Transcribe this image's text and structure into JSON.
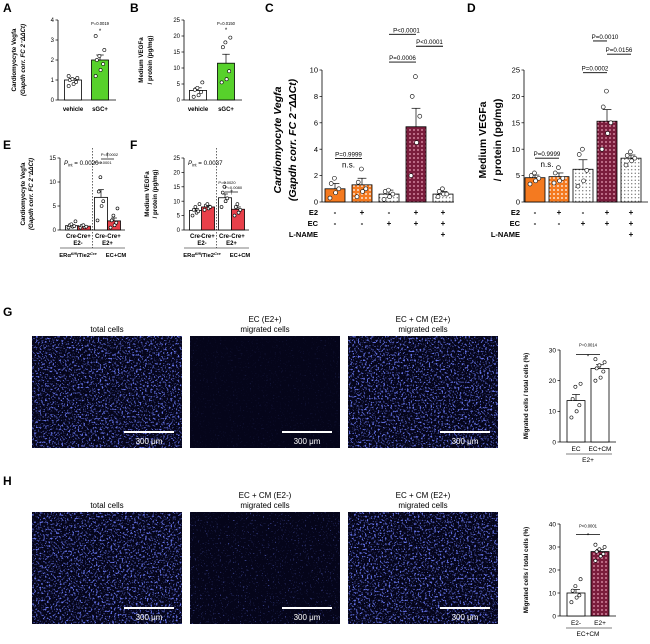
{
  "panels": {
    "A": {
      "letter": "A",
      "ylabel1": "Cardiomyocyte Vegfa",
      "ylabel2": "(Gapdh corr. FC 2⁻ΔΔCt)"
    },
    "B": {
      "letter": "B",
      "ylabel1": "Medium VEGFa",
      "ylabel2": "/ protein (pg/mg)"
    },
    "C": {
      "letter": "C",
      "ylabel1": "Cardiomyocyte Vegfa",
      "ylabel2": "(Gapdh corr. FC 2⁻ΔΔCt)"
    },
    "D": {
      "letter": "D",
      "ylabel1": "Medium VEGFa",
      "ylabel2": "/ protein (pg/mg)"
    },
    "E": {
      "letter": "E",
      "ylabel1": "Cardiomyocyte Vegfa",
      "ylabel2": "(Gapdh corr. FC 2⁻ΔΔCt)",
      "pint": "P",
      "pint_sub": "int",
      "pint_val": " = 0.0020",
      "genotype": "ERα",
      "genotype_sup": "fl/fl",
      "genotype2": "/Tie2",
      "genotype2_sup": "Cre",
      "ec_cm": "EC+CM"
    },
    "F": {
      "letter": "F",
      "ylabel1": "Medium VEGFa",
      "ylabel2": "/ protein (pg/mg)",
      "pint": "P",
      "pint_sub": "int",
      "pint_val": " = 0.0037",
      "genotype": "ERα",
      "genotype_sup": "fl/fl",
      "genotype2": "/Tie2",
      "genotype2_sup": "Cre",
      "ec_cm": "EC+CM"
    },
    "G": {
      "letter": "G",
      "img_labels": [
        [
          "total cells"
        ],
        [
          "EC (E2+)",
          "migrated cells"
        ],
        [
          "EC + CM (E2+)",
          "migrated cells"
        ]
      ],
      "scale": "300 μm",
      "ylabel": "Migrated cells / total cells (%)"
    },
    "H": {
      "letter": "H",
      "img_labels": [
        [
          "total cells"
        ],
        [
          "EC + CM (E2-)",
          "migrated cells"
        ],
        [
          "EC + CM (E2+)",
          "migrated cells"
        ]
      ],
      "scale": "300 μm",
      "ylabel": "Migrated cells / total cells (%)"
    }
  },
  "row_labels_CD": {
    "e2": "E2",
    "ec": "EC",
    "lname": "L-NAME",
    "minus": "-",
    "plus": "+"
  },
  "chart_data": [
    {
      "panel": "A",
      "type": "bar",
      "categories": [
        "vehicle",
        "sGC+"
      ],
      "values": [
        1.0,
        2.0
      ],
      "errors": [
        0.08,
        0.25
      ],
      "points": [
        [
          0.7,
          0.8,
          0.9,
          1.0,
          1.05,
          1.1,
          1.2
        ],
        [
          1.2,
          1.5,
          1.8,
          2.0,
          2.2,
          2.5,
          3.2
        ]
      ],
      "colors": [
        "#ffffff",
        "#57d12b"
      ],
      "ylim": [
        0,
        4
      ],
      "yticks": [
        0,
        1,
        2,
        3,
        4
      ],
      "p_labels": [
        "P=0.0019"
      ],
      "stars": [
        "*"
      ]
    },
    {
      "panel": "B",
      "type": "bar",
      "categories": [
        "vehicle",
        "sGC+"
      ],
      "values": [
        3.0,
        11.5
      ],
      "errors": [
        0.8,
        2.8
      ],
      "points": [
        [
          1.0,
          1.5,
          2.5,
          3.2,
          3.8,
          5.5
        ],
        [
          5.5,
          6.5,
          9.0,
          16.5,
          18.0,
          19.5
        ]
      ],
      "colors": [
        "#ffffff",
        "#57d12b"
      ],
      "ylim": [
        0,
        25
      ],
      "yticks": [
        0,
        5,
        10,
        15,
        20,
        25
      ],
      "p_labels": [
        "P=0.0150"
      ],
      "stars": [
        "*"
      ]
    },
    {
      "panel": "C",
      "type": "bar",
      "values": [
        1.0,
        1.3,
        0.6,
        5.7,
        0.6
      ],
      "errors": [
        0.4,
        0.5,
        0.3,
        1.4,
        0.2
      ],
      "points": [
        [
          0.3,
          0.7,
          1.0,
          1.4,
          1.8
        ],
        [
          0.4,
          0.8,
          1.0,
          1.5,
          2.5
        ],
        [
          0.2,
          0.4,
          0.6,
          0.8,
          0.9
        ],
        [
          2.0,
          4.5,
          6.5,
          8.0,
          9.5
        ],
        [
          0.4,
          0.6,
          0.6,
          0.8,
          1.0
        ]
      ],
      "colors": [
        "#f47a20",
        "#f47a20",
        "#ffffff",
        "#7a1d3c",
        "#ffffff"
      ],
      "patterns": [
        "solid",
        "dots",
        "dots-white",
        "dots",
        "dots-white"
      ],
      "ylim": [
        0,
        10
      ],
      "yticks": [
        0,
        2,
        4,
        6,
        8,
        10
      ],
      "e2": [
        "-",
        "+",
        "-",
        "+",
        "+"
      ],
      "ec": [
        "-",
        "-",
        "+",
        "+",
        "+"
      ],
      "lname": [
        "",
        "",
        "",
        "",
        "+"
      ],
      "p_labels": [
        "P=0.9999",
        "n.s.",
        "P=0.0006",
        "P<0.0001",
        "P<0.0001"
      ]
    },
    {
      "panel": "D",
      "type": "bar",
      "values": [
        4.6,
        4.8,
        6.2,
        15.3,
        8.3
      ],
      "errors": [
        0.5,
        0.7,
        1.8,
        2.2,
        0.6
      ],
      "points": [
        [
          3.4,
          4.0,
          4.5,
          5.0,
          5.5
        ],
        [
          3.6,
          4.0,
          4.5,
          5.5,
          6.5
        ],
        [
          3.0,
          4.0,
          6.0,
          9.0,
          10.0
        ],
        [
          10.0,
          13.0,
          15.0,
          18.0,
          21.0
        ],
        [
          7.0,
          7.8,
          8.3,
          8.8,
          9.5
        ]
      ],
      "colors": [
        "#f47a20",
        "#f47a20",
        "#ffffff",
        "#7a1d3c",
        "#ffffff"
      ],
      "patterns": [
        "solid",
        "dots",
        "dots-white",
        "dots",
        "dots-white"
      ],
      "ylim": [
        0,
        25
      ],
      "yticks": [
        0,
        5,
        10,
        15,
        20,
        25
      ],
      "e2": [
        "-",
        "+",
        "-",
        "+",
        "+"
      ],
      "ec": [
        "-",
        "-",
        "+",
        "+",
        "+"
      ],
      "lname": [
        "",
        "",
        "",
        "",
        "+"
      ],
      "p_labels": [
        "P=0.9999",
        "n.s.",
        "P=0.0002",
        "P=0.0010",
        "P=0.0156"
      ]
    },
    {
      "panel": "E",
      "type": "bar",
      "categories": [
        "Cre-",
        "Cre+",
        "Cre-",
        "Cre+"
      ],
      "groups": [
        "E2-",
        "E2+"
      ],
      "values": [
        0.9,
        0.8,
        6.8,
        1.9
      ],
      "errors": [
        0.2,
        0.15,
        1.6,
        0.6
      ],
      "points": [
        [
          0.5,
          0.7,
          0.8,
          1.0,
          1.2,
          1.8
        ],
        [
          0.5,
          0.6,
          0.7,
          0.9,
          1.0
        ],
        [
          2.0,
          5.0,
          6.0,
          8.0,
          11.0
        ],
        [
          0.5,
          1.0,
          1.5,
          2.0,
          3.0,
          4.5
        ]
      ],
      "colors": [
        "#ffffff",
        "#e8404a",
        "#ffffff",
        "#e8404a"
      ],
      "ylim": [
        0,
        15
      ],
      "yticks": [
        0,
        5,
        10,
        15
      ],
      "p_labels": [
        "P<0.0001",
        "P=0.0002"
      ],
      "stars": [
        "*",
        "†"
      ]
    },
    {
      "panel": "F",
      "type": "bar",
      "categories": [
        "Cre-",
        "Cre+",
        "Cre-",
        "Cre+"
      ],
      "groups": [
        "E2-",
        "E2+"
      ],
      "values": [
        6.8,
        8.0,
        11.2,
        7.2
      ],
      "errors": [
        0.7,
        0.6,
        1.3,
        0.8
      ],
      "points": [
        [
          5.0,
          6.0,
          6.5,
          7.0,
          8.0,
          9.0
        ],
        [
          7.0,
          7.5,
          8.0,
          8.5,
          9.0
        ],
        [
          8.0,
          10.0,
          11.0,
          13.0,
          15.0
        ],
        [
          5.0,
          6.0,
          7.0,
          8.0,
          9.0
        ]
      ],
      "colors": [
        "#ffffff",
        "#e8404a",
        "#ffffff",
        "#e8404a"
      ],
      "ylim": [
        0,
        25
      ],
      "yticks": [
        0,
        5,
        10,
        15,
        20,
        25
      ],
      "p_labels": [
        "P=0.0020",
        "P=0.0080"
      ],
      "stars": [
        "*",
        "†"
      ]
    },
    {
      "panel": "G",
      "type": "bar",
      "categories": [
        "EC",
        "EC+CM"
      ],
      "group": "E2+",
      "values": [
        13.5,
        24.0
      ],
      "errors": [
        2.0,
        1.2
      ],
      "points": [
        [
          8,
          10,
          12,
          14,
          18,
          19
        ],
        [
          20,
          21,
          23,
          24,
          25,
          26,
          27
        ]
      ],
      "colors": [
        "#ffffff",
        "#ffffff"
      ],
      "ylim": [
        0,
        30
      ],
      "yticks": [
        0,
        10,
        20,
        30
      ],
      "p_labels": [
        "P=0.0014"
      ],
      "stars": [
        "*"
      ]
    },
    {
      "panel": "H",
      "type": "bar",
      "categories": [
        "E2-",
        "E2+"
      ],
      "group": "EC+CM",
      "values": [
        10.0,
        28.0
      ],
      "errors": [
        1.5,
        1.0
      ],
      "points": [
        [
          6,
          8,
          9,
          11,
          13,
          16
        ],
        [
          24,
          26,
          27,
          28,
          29,
          30,
          31
        ]
      ],
      "colors": [
        "#ffffff",
        "#ffffff"
      ],
      "patterns": [
        "solid",
        "dots"
      ],
      "ylim": [
        0,
        40
      ],
      "yticks": [
        0,
        10,
        20,
        30,
        40
      ],
      "p_labels": [
        "P<0.0001"
      ],
      "stars": [
        "*"
      ]
    }
  ]
}
